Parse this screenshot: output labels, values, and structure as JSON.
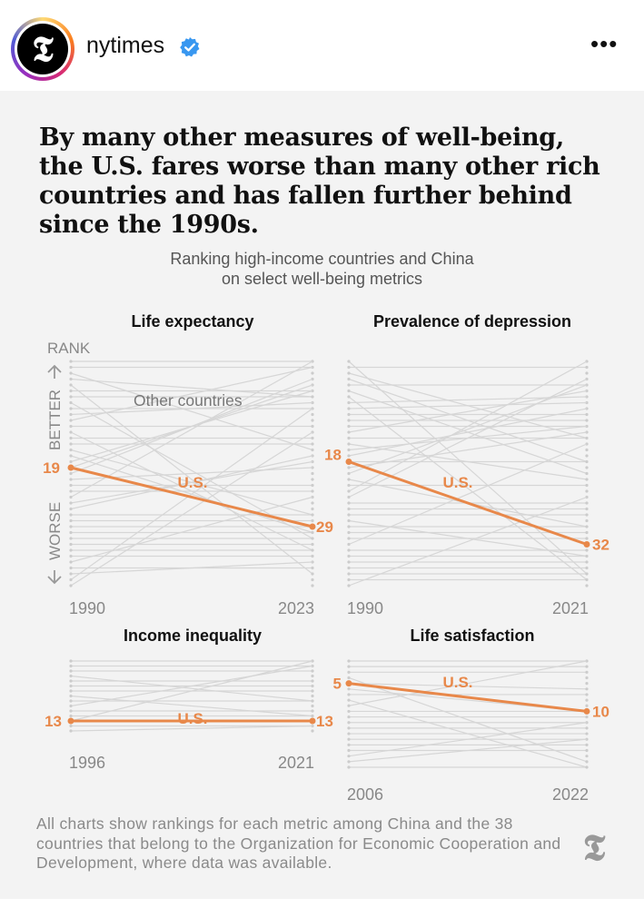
{
  "header": {
    "username": "nytimes",
    "avatar_glyph": "𝕿",
    "more_label": "•••",
    "accent": "#3897f0"
  },
  "post": {
    "headline": "By many other measures of well-being, the U.S. fares worse than many other rich countries and has fallen further behind since the 1990s.",
    "subtitle_line1": "Ranking high-income countries and China",
    "subtitle_line2": "on select well-being metrics",
    "axis_rank": "RANK",
    "axis_better": "BETTER",
    "axis_worse": "WORSE",
    "other_countries_label": "Other countries",
    "footnote": "All charts show rankings for each metric among China and the 38 countries that belong to the Organization for Economic Cooperation and Development, where data was available.",
    "footer_logo_glyph": "𝕿"
  },
  "colors": {
    "us_line": "#e8884a",
    "other_lines": "#d6d6d6",
    "background": "#f3f3f3"
  },
  "chart_data": [
    {
      "type": "line",
      "title": "Life expectancy",
      "x": [
        1990,
        2023
      ],
      "xlabels": [
        "1990",
        "2023"
      ],
      "series": [
        {
          "name": "U.S.",
          "values": [
            19,
            29
          ]
        }
      ],
      "ylabel": "RANK",
      "ylim": [
        1,
        39
      ],
      "y_inverted": true
    },
    {
      "type": "line",
      "title": "Prevalence of depression",
      "x": [
        1990,
        2021
      ],
      "xlabels": [
        "1990",
        "2021"
      ],
      "series": [
        {
          "name": "U.S.",
          "values": [
            18,
            32
          ]
        }
      ],
      "ylim": [
        1,
        39
      ],
      "y_inverted": true
    },
    {
      "type": "line",
      "title": "Income inequality",
      "x": [
        1996,
        2021
      ],
      "xlabels": [
        "1996",
        "2021"
      ],
      "series": [
        {
          "name": "U.S.",
          "values": [
            13,
            13
          ]
        }
      ],
      "ylim": [
        1,
        15
      ],
      "y_inverted": true
    },
    {
      "type": "line",
      "title": "Life satisfaction",
      "x": [
        2006,
        2022
      ],
      "xlabels": [
        "2006",
        "2022"
      ],
      "series": [
        {
          "name": "U.S.",
          "values": [
            5,
            10
          ]
        }
      ],
      "ylim": [
        1,
        20
      ],
      "y_inverted": true
    }
  ]
}
